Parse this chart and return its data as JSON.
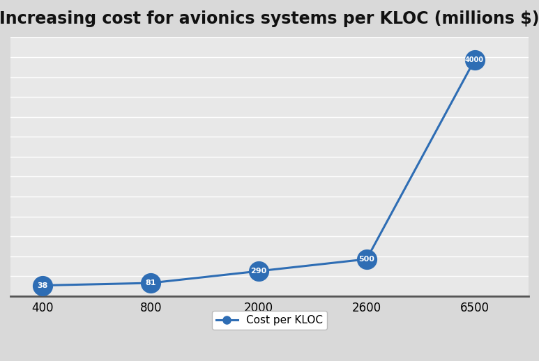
{
  "title": "Increasing cost for avionics systems per KLOC (millions $)",
  "x_indices": [
    0,
    1,
    2,
    3,
    4
  ],
  "y_values": [
    38,
    81,
    290,
    500,
    4000
  ],
  "x_labels": [
    "400",
    "800",
    "2000",
    "2600",
    "6500"
  ],
  "point_labels": [
    "38",
    "81",
    "290",
    "500",
    "4000"
  ],
  "line_color": "#2E6DB4",
  "marker_color": "#2E6DB4",
  "marker_size": 20,
  "line_width": 2.2,
  "legend_label": "Cost per KLOC",
  "background_color": "#D9D9D9",
  "plot_bg_color": "#E8E8E8",
  "title_fontsize": 17,
  "tick_fontsize": 12,
  "label_fontsize": 11,
  "ylim": [
    -150,
    4400
  ],
  "xlim": [
    -0.3,
    4.5
  ],
  "grid_color": "#FFFFFF",
  "grid_linewidth": 1.0,
  "num_gridlines": 14
}
